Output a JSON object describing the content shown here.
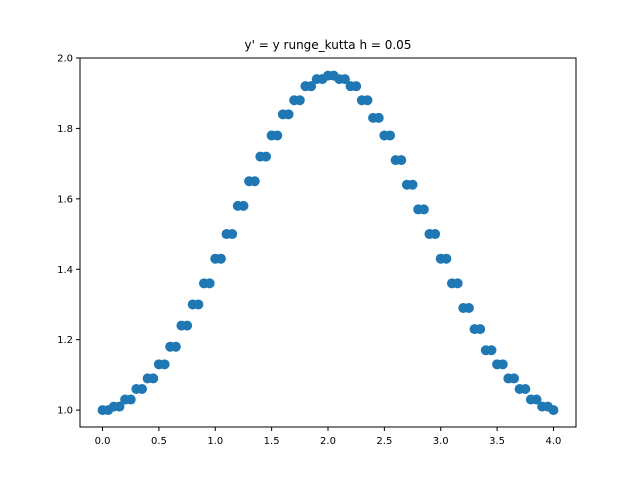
{
  "chart_data": {
    "type": "scatter",
    "title": "y' = y runge_kutta h = 0.05",
    "xlabel": "",
    "ylabel": "",
    "xlim": [
      -0.2,
      4.2
    ],
    "ylim": [
      0.952,
      2.0
    ],
    "xticks": [
      0.0,
      0.5,
      1.0,
      1.5,
      2.0,
      2.5,
      3.0,
      3.5,
      4.0
    ],
    "xtick_labels": [
      "0.0",
      "0.5",
      "1.0",
      "1.5",
      "2.0",
      "2.5",
      "3.0",
      "3.5",
      "4.0"
    ],
    "yticks": [
      1.0,
      1.2,
      1.4,
      1.6,
      1.8,
      2.0
    ],
    "ytick_labels": [
      "1.0",
      "1.2",
      "1.4",
      "1.6",
      "1.8",
      "2.0"
    ],
    "grid": false,
    "legend": false,
    "marker_color": "#1f77b4",
    "series": [
      {
        "x": [
          0.0,
          0.05,
          0.1,
          0.15,
          0.2,
          0.25,
          0.3,
          0.35,
          0.4,
          0.45,
          0.5,
          0.55,
          0.6,
          0.65,
          0.7,
          0.75,
          0.8,
          0.85,
          0.9,
          0.95,
          1.0,
          1.05,
          1.1,
          1.15,
          1.2,
          1.25,
          1.3,
          1.35,
          1.4,
          1.45,
          1.5,
          1.55,
          1.6,
          1.65,
          1.7,
          1.75,
          1.8,
          1.85,
          1.9,
          1.95,
          2.0,
          2.05,
          2.1,
          2.15,
          2.2,
          2.25,
          2.3,
          2.35,
          2.4,
          2.45,
          2.5,
          2.55,
          2.6,
          2.65,
          2.7,
          2.75,
          2.8,
          2.85,
          2.9,
          2.95,
          3.0,
          3.05,
          3.1,
          3.15,
          3.2,
          3.25,
          3.3,
          3.35,
          3.4,
          3.45,
          3.5,
          3.55,
          3.6,
          3.65,
          3.7,
          3.75,
          3.8,
          3.85,
          3.9,
          3.95,
          4.0
        ],
        "y": [
          1.0,
          1.0,
          1.01,
          1.01,
          1.03,
          1.03,
          1.06,
          1.06,
          1.09,
          1.09,
          1.13,
          1.13,
          1.18,
          1.18,
          1.24,
          1.24,
          1.3,
          1.3,
          1.36,
          1.36,
          1.43,
          1.43,
          1.5,
          1.5,
          1.58,
          1.58,
          1.65,
          1.65,
          1.72,
          1.72,
          1.78,
          1.78,
          1.84,
          1.84,
          1.88,
          1.88,
          1.92,
          1.92,
          1.94,
          1.94,
          1.95,
          1.95,
          1.94,
          1.94,
          1.92,
          1.92,
          1.88,
          1.88,
          1.83,
          1.83,
          1.78,
          1.78,
          1.71,
          1.71,
          1.64,
          1.64,
          1.57,
          1.57,
          1.5,
          1.5,
          1.43,
          1.43,
          1.36,
          1.36,
          1.29,
          1.29,
          1.23,
          1.23,
          1.17,
          1.17,
          1.13,
          1.13,
          1.09,
          1.09,
          1.06,
          1.06,
          1.03,
          1.03,
          1.01,
          1.01,
          1.0
        ]
      }
    ]
  }
}
